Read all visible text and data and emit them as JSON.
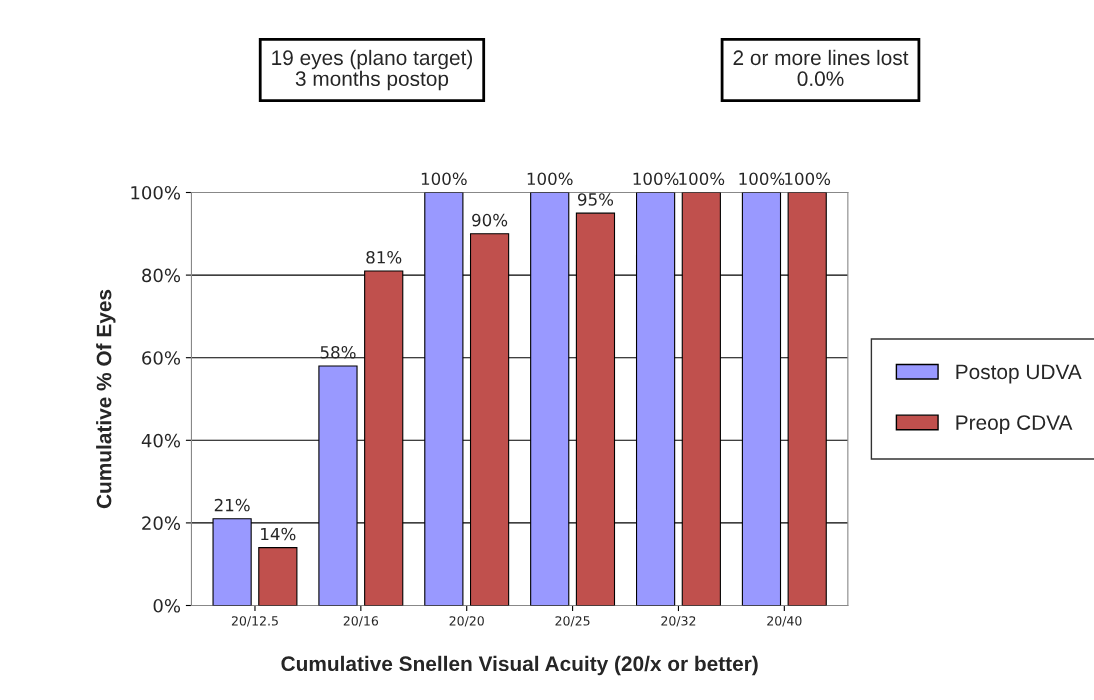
{
  "chart_data": {
    "type": "bar",
    "xlabel": "Cumulative Snellen Visual Acuity (20/x or better)",
    "ylabel": "Cumulative % Of Eyes",
    "categories": [
      "20/12.5",
      "20/16",
      "20/20",
      "20/25",
      "20/32",
      "20/40"
    ],
    "series": [
      {
        "name": "Postop UDVA",
        "color": "#9999ff",
        "values": [
          21,
          58,
          100,
          100,
          100,
          100
        ],
        "value_labels": [
          "21%",
          "58%",
          "100%",
          "100%",
          "100%",
          "100%"
        ]
      },
      {
        "name": "Preop CDVA",
        "color": "#c0504d",
        "values": [
          14,
          81,
          90,
          95,
          100,
          100
        ],
        "value_labels": [
          "14%",
          "81%",
          "90%",
          "95%",
          "100%",
          "100%"
        ]
      }
    ],
    "ylim": [
      0,
      100
    ],
    "yticks": [
      {
        "value": 0,
        "label": "0%"
      },
      {
        "value": 20,
        "label": "20%"
      },
      {
        "value": 40,
        "label": "40%"
      },
      {
        "value": 60,
        "label": "60%"
      },
      {
        "value": 80,
        "label": "80%"
      },
      {
        "value": 100,
        "label": "100%"
      }
    ],
    "grid": "y",
    "legend": "right",
    "annotations": [
      "19 eyes (plano target)\n3 months postop",
      "2 or more lines lost\n0.0%"
    ]
  }
}
